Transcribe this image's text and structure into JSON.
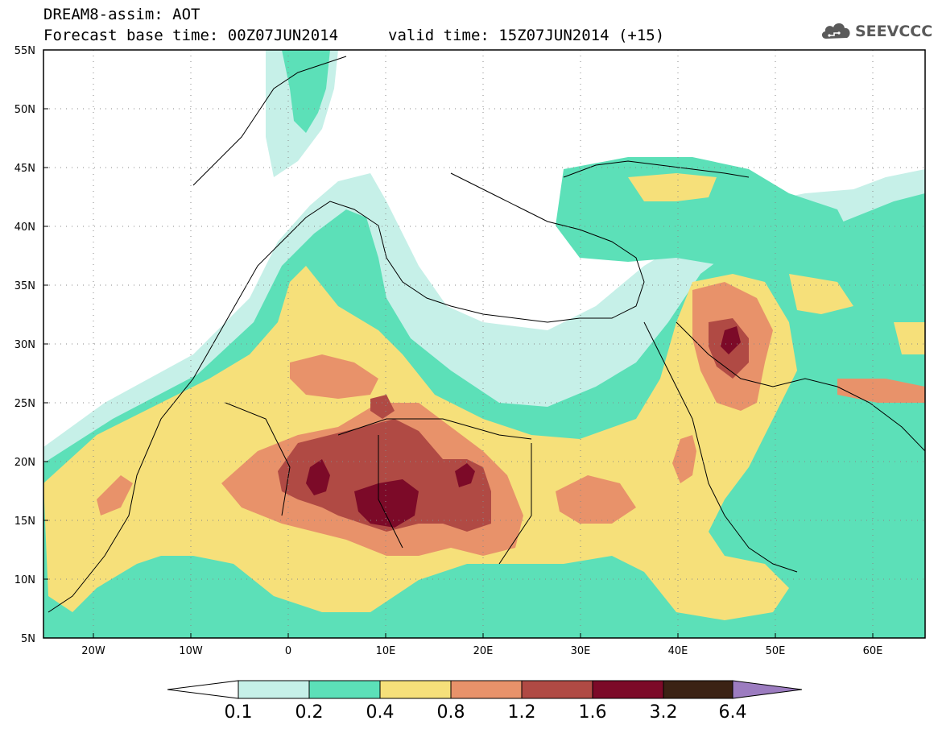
{
  "header": {
    "title": "DREAM8-assim: AOT",
    "base_time": "Forecast base time: 00Z07JUN2014",
    "valid_time": "valid time: 15Z07JUN2014 (+15)"
  },
  "logo": {
    "text": "SEEVCCC",
    "icon": "cloud-icon"
  },
  "map": {
    "lat_labels": [
      "55N",
      "50N",
      "45N",
      "40N",
      "35N",
      "30N",
      "25N",
      "20N",
      "15N",
      "10N",
      "5N"
    ],
    "lon_labels": [
      "20W",
      "10W",
      "0",
      "10E",
      "20E",
      "30E",
      "40E",
      "50E",
      "60E"
    ],
    "extent": {
      "lon": [
        -25,
        65
      ],
      "lat": [
        5,
        55
      ]
    },
    "gridlines": "dotted"
  },
  "colorbar": {
    "labels": [
      "0.1",
      "0.2",
      "0.4",
      "0.8",
      "1.2",
      "1.6",
      "3.2",
      "6.4"
    ],
    "colors": [
      "#c6f0e8",
      "#5ce0b8",
      "#f6e07a",
      "#e8926a",
      "#b04a44",
      "#7c0a28",
      "#3b2214",
      "#9c7cc0"
    ],
    "under_color": "#ffffff"
  }
}
